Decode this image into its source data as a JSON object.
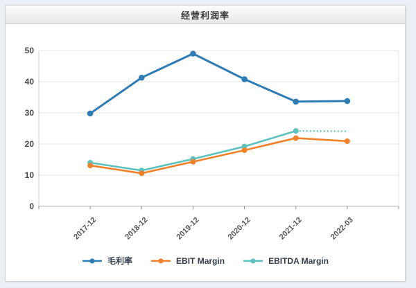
{
  "panel": {
    "title": "经营利润率"
  },
  "chart_data": {
    "type": "line",
    "title": "经营利润率",
    "categories": [
      "2017-12",
      "2018-12",
      "2019-12",
      "2020-12",
      "2021-12",
      "2022-03"
    ],
    "series": [
      {
        "key": "gross-margin",
        "name": "毛利率",
        "color": "#2d7cb5",
        "values": [
          29.8,
          41.3,
          49.0,
          40.8,
          33.6,
          33.8
        ],
        "line": "solid"
      },
      {
        "key": "ebit-margin",
        "name": "EBIT Margin",
        "color": "#f0812a",
        "values": [
          13.1,
          10.6,
          14.3,
          18.0,
          21.9,
          20.9
        ],
        "line": "solid"
      },
      {
        "key": "ebitda-margin",
        "name": "EBITDA Margin",
        "color": "#5bc1bd",
        "values": [
          14.0,
          11.5,
          15.2,
          19.2,
          24.2,
          24.1
        ],
        "line": "solid_then_dotted",
        "dotted_from_index": 4,
        "end_marker": false
      }
    ],
    "ylim": [
      0,
      50
    ],
    "yticks": [
      0,
      10,
      20,
      30,
      40,
      50
    ],
    "grid": true,
    "x_label_rotation": -45,
    "legend_position": "bottom"
  },
  "colors": {
    "grid": "#e4e4e4",
    "axis_line": "#b3b3b3",
    "y_axis_line": "#cfcfcf",
    "plot_right_border": "#e0e0e0",
    "tick": "#8a8a8a",
    "y_label": "#454545",
    "x_label": "#555555",
    "legend_text": "#333d4a",
    "panel_border": "#d0d0d0",
    "header_gradient_top": "#fdfdfd",
    "header_gradient_bottom": "#e7e7e7",
    "page_background": "#eaeff5",
    "chart_background": "#ffffff"
  }
}
